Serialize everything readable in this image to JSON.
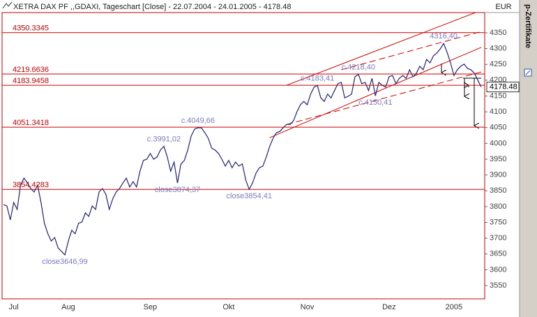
{
  "chart_data": {
    "type": "line",
    "title": "XETRA DAX PF ,,GDAXI, Tageschart [Close] - 22.07.2004 - 24.01.2005 - 4178.48",
    "currency": "EUR",
    "side_label": "p-Zertifikate",
    "color": "#22227a",
    "values": [
      3806,
      3802,
      3758,
      3813,
      3791,
      3868,
      3890,
      3875,
      3857,
      3846,
      3868,
      3813,
      3747,
      3714,
      3691,
      3702,
      3669,
      3658,
      3646.99,
      3691,
      3725,
      3714,
      3747,
      3751,
      3780,
      3769,
      3802,
      3791,
      3846,
      3857,
      3839,
      3791,
      3824,
      3846,
      3857,
      3875,
      3890,
      3862,
      3879,
      3862,
      3912,
      3946,
      3950,
      3968,
      3950,
      3957,
      3979,
      3991.02,
      3957,
      3912,
      3941,
      3874.37,
      3935,
      3946,
      3979,
      4023,
      4045,
      4049.66,
      4049,
      4034,
      4016,
      3985,
      3979,
      3968,
      3950,
      3928,
      3946,
      3923,
      3941,
      3928,
      3935,
      3884,
      3854.41,
      3875,
      3906,
      3923,
      3928,
      3957,
      3990,
      4016,
      4034,
      4038,
      4050,
      4060,
      4060,
      4072,
      4100,
      4122,
      4133,
      4122,
      4156,
      4178,
      4183.41,
      4144,
      4133,
      4156,
      4144,
      4167,
      4189,
      4193,
      4144,
      4149,
      4156,
      4211,
      4218.4,
      4189,
      4193,
      4167,
      4206,
      4150.41,
      4193,
      4184,
      4178,
      4211,
      4215,
      4189,
      4206,
      4215,
      4206,
      4233,
      4211,
      4222,
      4244,
      4233,
      4266,
      4255,
      4277,
      4286,
      4299,
      4316.4,
      4288,
      4255,
      4215,
      4233,
      4244,
      4251,
      4237,
      4233,
      4222,
      4200,
      4178.48
    ],
    "xlim": [
      0,
      140
    ],
    "xticks": [
      {
        "value": 3,
        "label": "Jul"
      },
      {
        "value": 19,
        "label": "Aug"
      },
      {
        "value": 43,
        "label": "Sep"
      },
      {
        "value": 66,
        "label": "Okt"
      },
      {
        "value": 89,
        "label": "Nov"
      },
      {
        "value": 113,
        "label": "Dez"
      },
      {
        "value": 132,
        "label": "2005"
      }
    ],
    "ylim": [
      3508,
      4414
    ],
    "yticks": [
      3550,
      3600,
      3650,
      3700,
      3750,
      3800,
      3850,
      3900,
      3950,
      4000,
      4050,
      4100,
      4150,
      4200,
      4250,
      4300,
      4350
    ],
    "levels": [
      4350.3345,
      4219.6636,
      4183.9458,
      4051.3418,
      3854.4283
    ],
    "level_color": "#cc0000",
    "annotation_color": "#7b7bc8",
    "annotations": [
      {
        "text": "close3646,99",
        "x": 18,
        "value": 3646.99
      },
      {
        "text": "c.3991,02",
        "x": 47,
        "value": 3991.02
      },
      {
        "text": "close3874,37",
        "x": 51,
        "value": 3874.37
      },
      {
        "text": "c.4049,66",
        "x": 57,
        "value": 4049.66
      },
      {
        "text": "close3854,41",
        "x": 72,
        "value": 3854.41
      },
      {
        "text": "c.4183,41",
        "x": 92,
        "value": 4183.41
      },
      {
        "text": "c.4218,40",
        "x": 104,
        "value": 4218.4
      },
      {
        "text": "c.4150,41",
        "x": 109,
        "value": 4150.41
      },
      {
        "text": "4316,40",
        "x": 129,
        "value": 4316.4
      }
    ],
    "trendlines": [
      {
        "x": [
          83,
          140
        ],
        "y": [
          4184,
          4421
        ],
        "dashed": false
      },
      {
        "x": [
          99,
          140
        ],
        "y": [
          4233,
          4354
        ],
        "dashed": true
      },
      {
        "x": [
          78,
          140
        ],
        "y": [
          4018,
          4304
        ],
        "dashed": false
      },
      {
        "x": [
          83,
          140
        ],
        "y": [
          4060,
          4226
        ],
        "dashed": true
      }
    ]
  }
}
